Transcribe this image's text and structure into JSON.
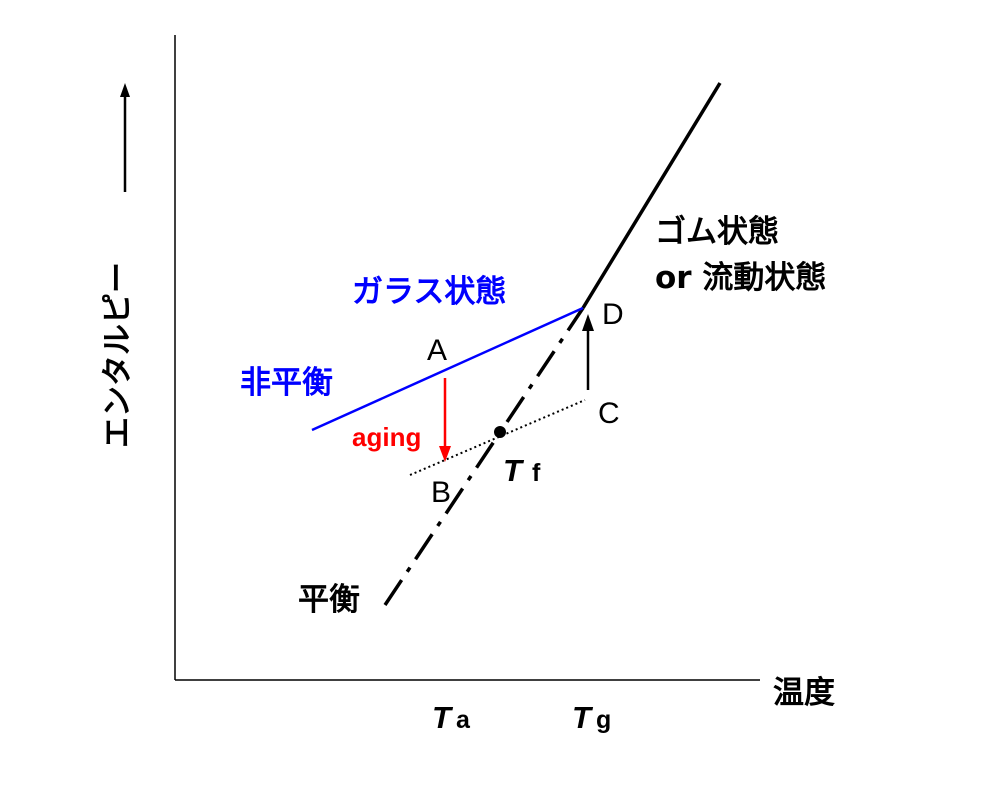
{
  "axes": {
    "x_label": "温度",
    "y_label": "エンタルピー"
  },
  "regions": {
    "glass_state": "ガラス状態",
    "nonequilibrium": "非平衡",
    "rubber_state": "ゴム状態",
    "flow_state": "or 流動状態",
    "equilibrium": "平衡"
  },
  "process": {
    "aging": "aging"
  },
  "points": {
    "a": "A",
    "b": "B",
    "c": "C",
    "d": "D"
  },
  "temperatures": {
    "fictive": {
      "symbol": "T",
      "subscript": "f"
    },
    "aging": {
      "symbol": "T",
      "subscript": "a"
    },
    "glass_transition": {
      "symbol": "T",
      "subscript": "g"
    }
  },
  "colors": {
    "nonequilibrium": "#0000ff",
    "aging": "#ff0000",
    "ink": "#000000"
  }
}
